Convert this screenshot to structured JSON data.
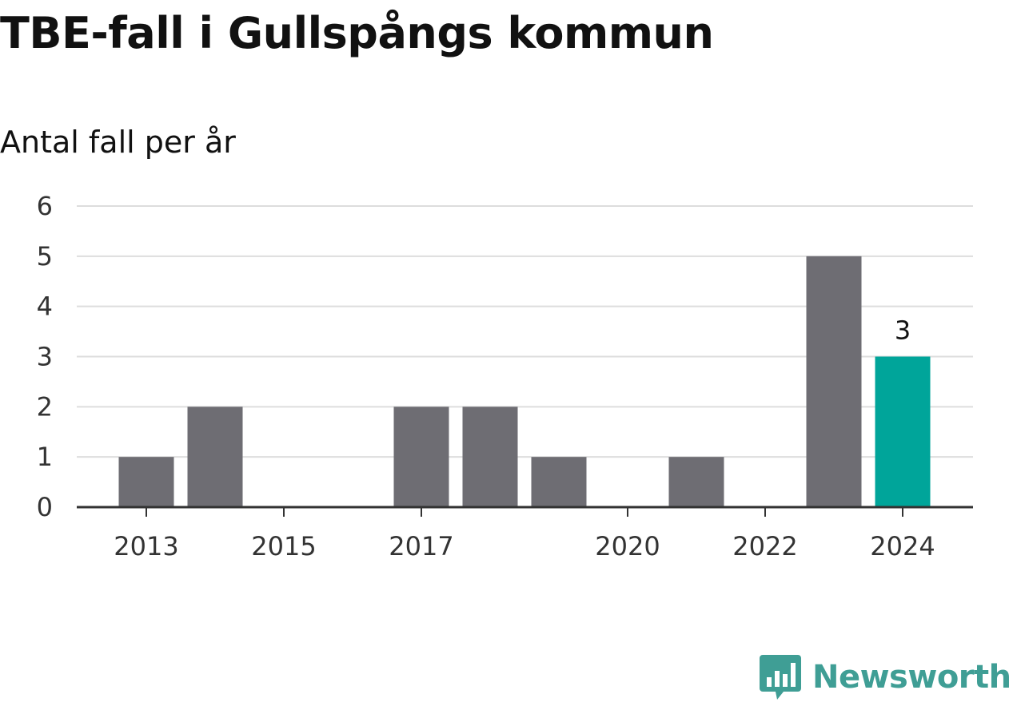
{
  "header": {
    "title": "TBE-fall i Gullspångs kommun",
    "subtitle": "Antal fall per år"
  },
  "branding": {
    "name": "Newsworthy",
    "icon": "bar-chart-speech-bubble-icon",
    "color": "#3f9e95"
  },
  "colors": {
    "bar": "#6e6d73",
    "highlight": "#00a59a",
    "grid": "#dddddd",
    "axis": "#333333"
  },
  "chart_data": {
    "type": "bar",
    "x": [
      2013,
      2014,
      2015,
      2016,
      2017,
      2018,
      2019,
      2020,
      2021,
      2022,
      2023,
      2024
    ],
    "values": [
      1,
      2,
      0,
      0,
      2,
      2,
      1,
      0,
      1,
      0,
      5,
      3
    ],
    "highlight": 2024,
    "data_labels": [
      {
        "x": 2024,
        "text": "3"
      }
    ],
    "x_tick_labels": [
      "2013",
      "2015",
      "2017",
      "2020",
      "2022",
      "2024"
    ],
    "y_tick_labels": [
      "0",
      "1",
      "2",
      "3",
      "4",
      "5",
      "6"
    ],
    "ylim": [
      0,
      6
    ],
    "grid": true,
    "legend": "none"
  }
}
